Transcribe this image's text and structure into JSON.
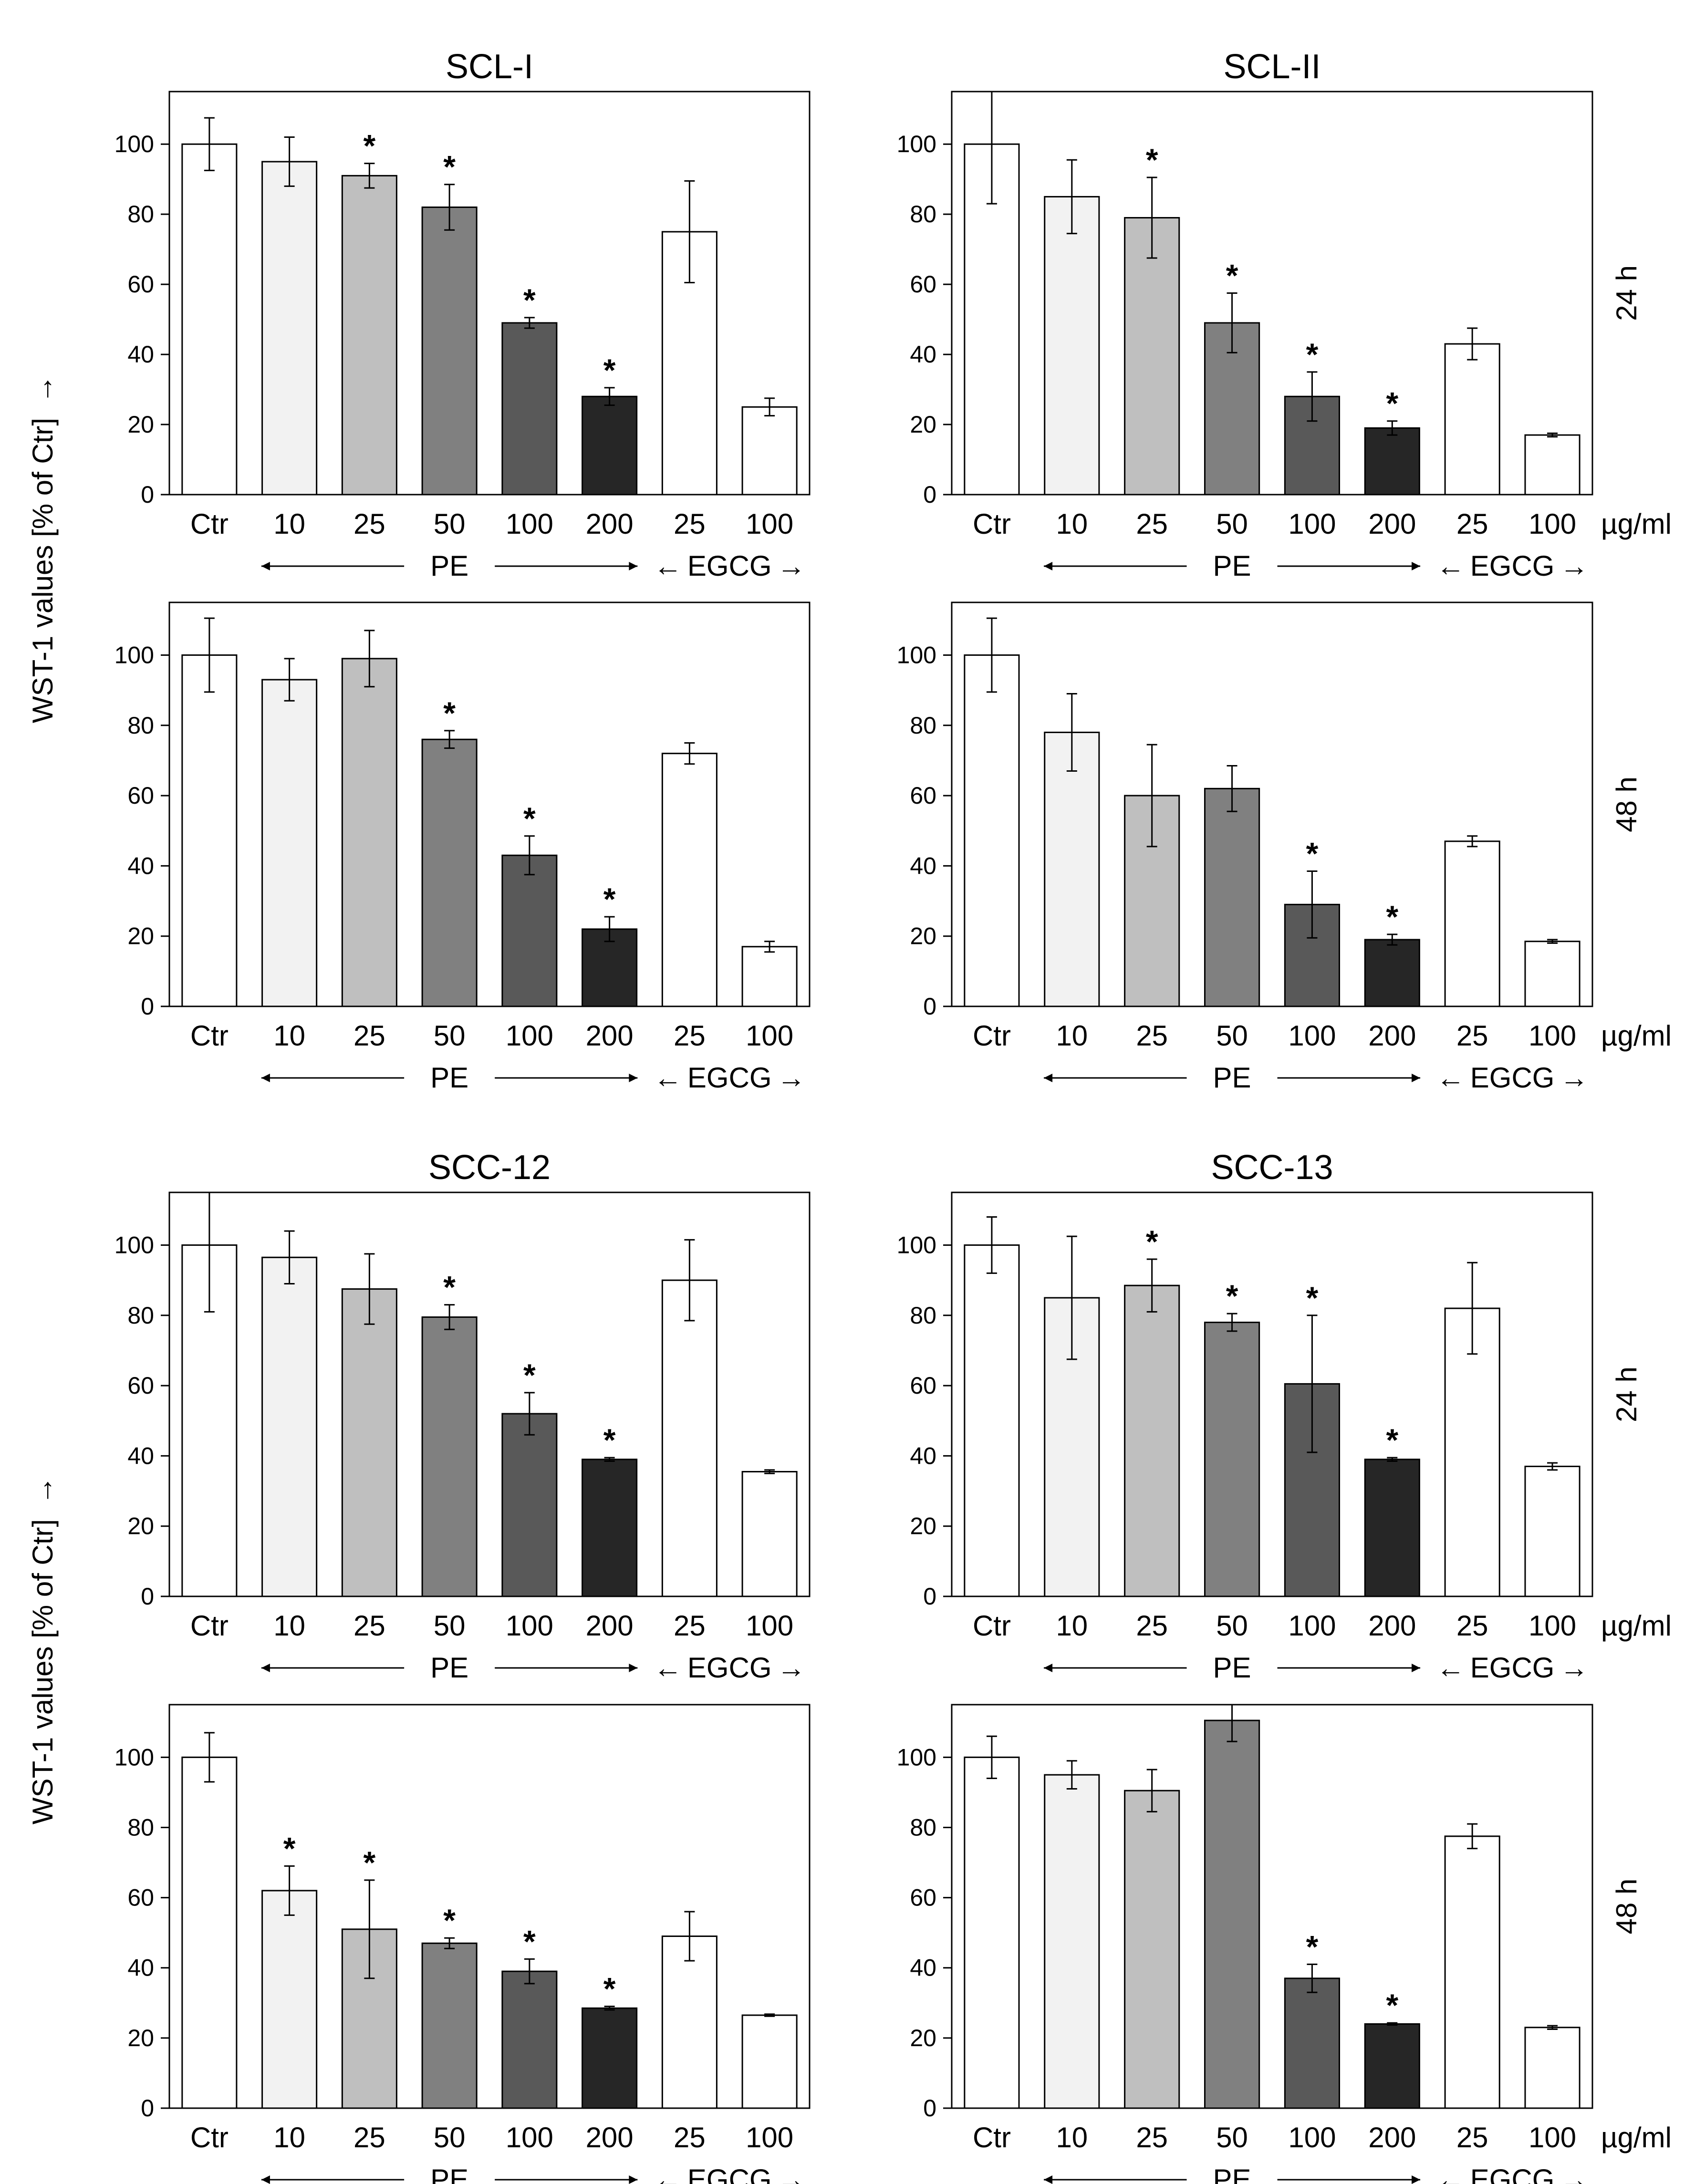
{
  "figure": {
    "ylabel": "WST-1 values [% of Ctr]",
    "ylabel_arrow": "→",
    "unit": "µg/ml",
    "group_pe": "PE",
    "group_egcg": "EGCG",
    "arrow_left": "←",
    "arrow_right": "→",
    "time_24": "24 h",
    "time_48": "48 h",
    "significance": "*"
  },
  "chart_data": [
    {
      "type": "bar",
      "title": "SCL-I",
      "time": "24 h",
      "categories": [
        "Ctr",
        "10",
        "25",
        "50",
        "100",
        "200",
        "25",
        "100"
      ],
      "values": [
        100,
        95,
        91,
        82,
        49,
        28,
        75,
        25
      ],
      "errors": [
        7.5,
        7,
        3.5,
        6.5,
        1.5,
        2.5,
        14.5,
        2.5
      ],
      "significant": [
        false,
        false,
        true,
        true,
        true,
        true,
        false,
        false
      ],
      "fills": [
        "#ffffff",
        "#f2f2f2",
        "#bfbfbf",
        "#808080",
        "#595959",
        "#262626",
        "#ffffff",
        "#ffffff"
      ],
      "yticks": [
        "0",
        "20",
        "40",
        "60",
        "80",
        "100"
      ],
      "ylim": [
        0,
        115
      ]
    },
    {
      "type": "bar",
      "title": "SCL-II",
      "time": "24 h",
      "categories": [
        "Ctr",
        "10",
        "25",
        "50",
        "100",
        "200",
        "25",
        "100"
      ],
      "values": [
        100,
        85,
        79,
        49,
        28,
        19,
        43,
        17
      ],
      "errors": [
        17,
        10.5,
        11.5,
        8.5,
        7,
        2,
        4.5,
        0.5
      ],
      "significant": [
        false,
        false,
        true,
        true,
        true,
        true,
        false,
        false
      ],
      "fills": [
        "#ffffff",
        "#f2f2f2",
        "#bfbfbf",
        "#808080",
        "#595959",
        "#262626",
        "#ffffff",
        "#ffffff"
      ],
      "yticks": [
        "0",
        "20",
        "40",
        "60",
        "80",
        "100"
      ],
      "ylim": [
        0,
        115
      ]
    },
    {
      "type": "bar",
      "title": "SCL-I",
      "time": "48 h",
      "categories": [
        "Ctr",
        "10",
        "25",
        "50",
        "100",
        "200",
        "25",
        "100"
      ],
      "values": [
        100,
        93,
        99,
        76,
        43,
        22,
        72,
        17
      ],
      "errors": [
        10.5,
        6,
        8,
        2.5,
        5.5,
        3.5,
        3,
        1.5
      ],
      "significant": [
        false,
        false,
        false,
        true,
        true,
        true,
        false,
        false
      ],
      "fills": [
        "#ffffff",
        "#f2f2f2",
        "#bfbfbf",
        "#808080",
        "#595959",
        "#262626",
        "#ffffff",
        "#ffffff"
      ],
      "yticks": [
        "0",
        "20",
        "40",
        "60",
        "80",
        "100"
      ],
      "ylim": [
        0,
        115
      ]
    },
    {
      "type": "bar",
      "title": "SCL-II",
      "time": "48 h",
      "categories": [
        "Ctr",
        "10",
        "25",
        "50",
        "100",
        "200",
        "25",
        "100"
      ],
      "values": [
        100,
        78,
        60,
        62,
        29,
        19,
        47,
        18.5
      ],
      "errors": [
        10.5,
        11,
        14.5,
        6.5,
        9.5,
        1.5,
        1.5,
        0.5
      ],
      "significant": [
        false,
        false,
        false,
        false,
        true,
        true,
        false,
        false
      ],
      "fills": [
        "#ffffff",
        "#f2f2f2",
        "#bfbfbf",
        "#808080",
        "#595959",
        "#262626",
        "#ffffff",
        "#ffffff"
      ],
      "yticks": [
        "0",
        "20",
        "40",
        "60",
        "80",
        "100"
      ],
      "ylim": [
        0,
        115
      ]
    },
    {
      "type": "bar",
      "title": "SCC-12",
      "time": "24 h",
      "categories": [
        "Ctr",
        "10",
        "25",
        "50",
        "100",
        "200",
        "25",
        "100"
      ],
      "values": [
        100,
        96.5,
        87.5,
        79.5,
        52,
        39,
        90,
        35.5
      ],
      "errors": [
        19,
        7.5,
        10,
        3.5,
        6,
        0.5,
        11.5,
        0.5
      ],
      "significant": [
        false,
        false,
        false,
        true,
        true,
        true,
        false,
        false
      ],
      "fills": [
        "#ffffff",
        "#f2f2f2",
        "#bfbfbf",
        "#808080",
        "#595959",
        "#262626",
        "#ffffff",
        "#ffffff"
      ],
      "yticks": [
        "0",
        "20",
        "40",
        "60",
        "80",
        "100"
      ],
      "ylim": [
        0,
        115
      ]
    },
    {
      "type": "bar",
      "title": "SCC-13",
      "time": "24 h",
      "categories": [
        "Ctr",
        "10",
        "25",
        "50",
        "100",
        "200",
        "25",
        "100"
      ],
      "values": [
        100,
        85,
        88.5,
        78,
        60.5,
        39,
        82,
        37
      ],
      "errors": [
        8,
        17.5,
        7.5,
        2.5,
        19.5,
        0.5,
        13,
        1
      ],
      "significant": [
        false,
        false,
        true,
        true,
        true,
        true,
        false,
        false
      ],
      "fills": [
        "#ffffff",
        "#f2f2f2",
        "#bfbfbf",
        "#808080",
        "#595959",
        "#262626",
        "#ffffff",
        "#ffffff"
      ],
      "yticks": [
        "0",
        "20",
        "40",
        "60",
        "80",
        "100"
      ],
      "ylim": [
        0,
        115
      ]
    },
    {
      "type": "bar",
      "title": "SCC-12",
      "time": "48 h",
      "categories": [
        "Ctr",
        "10",
        "25",
        "50",
        "100",
        "200",
        "25",
        "100"
      ],
      "values": [
        100,
        62,
        51,
        47,
        39,
        28.5,
        49,
        26.5
      ],
      "errors": [
        7,
        7,
        14,
        1.5,
        3.5,
        0.5,
        7,
        0.3
      ],
      "significant": [
        false,
        true,
        true,
        true,
        true,
        true,
        false,
        false
      ],
      "fills": [
        "#ffffff",
        "#f2f2f2",
        "#bfbfbf",
        "#808080",
        "#595959",
        "#262626",
        "#ffffff",
        "#ffffff"
      ],
      "yticks": [
        "0",
        "20",
        "40",
        "60",
        "80",
        "100"
      ],
      "ylim": [
        0,
        115
      ]
    },
    {
      "type": "bar",
      "title": "SCC-13",
      "time": "48 h",
      "categories": [
        "Ctr",
        "10",
        "25",
        "50",
        "100",
        "200",
        "25",
        "100"
      ],
      "values": [
        100,
        95,
        90.5,
        110.5,
        37,
        24,
        77.5,
        23
      ],
      "errors": [
        6,
        4,
        6,
        6,
        4,
        0.3,
        3.5,
        0.5
      ],
      "significant": [
        false,
        false,
        false,
        false,
        true,
        true,
        false,
        false
      ],
      "fills": [
        "#ffffff",
        "#f2f2f2",
        "#bfbfbf",
        "#808080",
        "#595959",
        "#262626",
        "#ffffff",
        "#ffffff"
      ],
      "yticks": [
        "0",
        "20",
        "40",
        "60",
        "80",
        "100"
      ],
      "ylim": [
        0,
        115
      ]
    }
  ]
}
